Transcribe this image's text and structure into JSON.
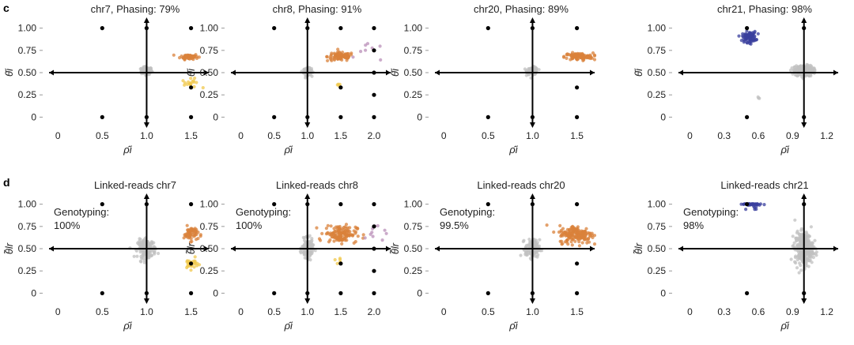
{
  "colors": {
    "null": "#c0c0c0",
    "gain": "#d9823b",
    "loss": "#f0c84c",
    "loh": "#3a3f9e",
    "other": "#b98fb8",
    "axis": "#000000",
    "text": "#222222"
  },
  "chart_data": [
    {
      "row": "c",
      "type": "scatter",
      "title": "chr7, Phasing: 79%",
      "xlabel": "ρ̂i",
      "ylabel": "θ̂i",
      "xlim": [
        -0.1,
        1.7
      ],
      "ylim": [
        -0.05,
        1.05
      ],
      "xticks": [
        0,
        0.5,
        1.0,
        1.5
      ],
      "xtick_labels": [
        "0",
        "0.5",
        "1.0",
        "1.5"
      ],
      "yticks": [
        0,
        0.25,
        0.5,
        0.75,
        1.0
      ],
      "ytick_labels": [
        "0",
        "0.25",
        "0.50",
        "0.75",
        "1.00"
      ],
      "h_axis_y": 0.5,
      "v_axis_x": 1.0,
      "reference_points": [
        [
          0.5,
          1.0
        ],
        [
          0.5,
          0
        ],
        [
          1.5,
          1.0
        ],
        [
          1.5,
          0.333
        ],
        [
          1.5,
          0
        ],
        [
          1.0,
          1.0
        ],
        [
          1.0,
          0
        ]
      ],
      "clusters": [
        {
          "class": "null",
          "cx": 1.0,
          "cy": 0.52,
          "sx": 0.03,
          "sy": 0.02,
          "n": 130
        },
        {
          "class": "gain",
          "cx": 1.48,
          "cy": 0.68,
          "sx": 0.05,
          "sy": 0.015,
          "n": 60
        },
        {
          "class": "loss",
          "cx": 1.5,
          "cy": 0.38,
          "sx": 0.05,
          "sy": 0.025,
          "n": 18
        }
      ]
    },
    {
      "row": "c",
      "type": "scatter",
      "title": "chr8, Phasing: 91%",
      "xlabel": "ρ̂i",
      "ylabel": "θ̂i",
      "xlim": [
        -0.15,
        2.25
      ],
      "ylim": [
        -0.05,
        1.05
      ],
      "xticks": [
        0,
        0.5,
        1.0,
        1.5,
        2.0
      ],
      "xtick_labels": [
        "0",
        "0.5",
        "1.0",
        "1.5",
        "2.0"
      ],
      "yticks": [
        0,
        0.25,
        0.5,
        0.75,
        1.0
      ],
      "ytick_labels": [
        "0",
        "0.25",
        "0.50",
        "0.75",
        "1.00"
      ],
      "h_axis_y": 0.5,
      "v_axis_x": 1.0,
      "reference_points": [
        [
          0.5,
          1.0
        ],
        [
          0.5,
          0
        ],
        [
          1.5,
          1.0
        ],
        [
          1.5,
          0.333
        ],
        [
          1.5,
          0
        ],
        [
          2.0,
          1.0
        ],
        [
          2.0,
          0.75
        ],
        [
          2.0,
          0.5
        ],
        [
          2.0,
          0.25
        ],
        [
          2.0,
          0
        ],
        [
          1.0,
          1.0
        ],
        [
          1.0,
          0
        ]
      ],
      "clusters": [
        {
          "class": "null",
          "cx": 1.0,
          "cy": 0.51,
          "sx": 0.03,
          "sy": 0.02,
          "n": 110
        },
        {
          "class": "gain",
          "cx": 1.5,
          "cy": 0.68,
          "sx": 0.1,
          "sy": 0.025,
          "n": 90
        },
        {
          "class": "loss",
          "cx": 1.45,
          "cy": 0.36,
          "sx": 0.03,
          "sy": 0.02,
          "n": 4
        },
        {
          "class": "other",
          "cx": 1.95,
          "cy": 0.72,
          "sx": 0.1,
          "sy": 0.05,
          "n": 8
        }
      ]
    },
    {
      "row": "c",
      "type": "scatter",
      "title": "chr20, Phasing: 89%",
      "xlabel": "ρ̂i",
      "ylabel": "θ̂i",
      "xlim": [
        -0.1,
        1.7
      ],
      "ylim": [
        -0.05,
        1.05
      ],
      "xticks": [
        0,
        0.5,
        1.0,
        1.5
      ],
      "xtick_labels": [
        "0",
        "0.5",
        "1.0",
        "1.5"
      ],
      "yticks": [
        0,
        0.25,
        0.5,
        0.75,
        1.0
      ],
      "ytick_labels": [
        "0",
        "0.25",
        "0.50",
        "0.75",
        "1.00"
      ],
      "h_axis_y": 0.5,
      "v_axis_x": 1.0,
      "reference_points": [
        [
          0.5,
          1.0
        ],
        [
          0.5,
          0
        ],
        [
          1.5,
          1.0
        ],
        [
          1.5,
          0.333
        ],
        [
          1.5,
          0
        ],
        [
          1.0,
          1.0
        ],
        [
          1.0,
          0
        ]
      ],
      "clusters": [
        {
          "class": "null",
          "cx": 1.0,
          "cy": 0.52,
          "sx": 0.03,
          "sy": 0.02,
          "n": 110
        },
        {
          "class": "gain",
          "cx": 1.52,
          "cy": 0.68,
          "sx": 0.08,
          "sy": 0.02,
          "n": 110
        }
      ]
    },
    {
      "row": "c",
      "type": "scatter",
      "title": "chr21, Phasing: 98%",
      "xlabel": "ρ̂i",
      "ylabel": "θ̂i",
      "xlim": [
        -0.1,
        1.3
      ],
      "ylim": [
        -0.05,
        1.05
      ],
      "xticks": [
        0,
        0.3,
        0.6,
        0.9,
        1.2
      ],
      "xtick_labels": [
        "0",
        "0.3",
        "0.6",
        "0.9",
        "1.2"
      ],
      "yticks": [
        0,
        0.25,
        0.5,
        0.75,
        1.0
      ],
      "ytick_labels": [
        "0",
        "0.25",
        "0.50",
        "0.75",
        "1.00"
      ],
      "h_axis_y": 0.5,
      "v_axis_x": 1.0,
      "reference_points": [
        [
          0.5,
          1.0
        ],
        [
          0.5,
          0
        ],
        [
          1.0,
          1.0
        ],
        [
          1.0,
          0
        ]
      ],
      "clusters": [
        {
          "class": "null",
          "cx": 1.0,
          "cy": 0.52,
          "sx": 0.04,
          "sy": 0.03,
          "n": 260
        },
        {
          "class": "loh",
          "cx": 0.52,
          "cy": 0.9,
          "sx": 0.03,
          "sy": 0.03,
          "n": 90
        },
        {
          "class": "null",
          "cx": 0.6,
          "cy": 0.22,
          "sx": 0.01,
          "sy": 0.01,
          "n": 3
        }
      ]
    },
    {
      "row": "d",
      "type": "scatter",
      "title": "Linked-reads chr7",
      "annotation": [
        "Genotyping:",
        "100%"
      ],
      "xlabel": "ρ̂i",
      "ylabel": "θ̃lr",
      "xlim": [
        -0.1,
        1.7
      ],
      "ylim": [
        -0.05,
        1.05
      ],
      "xticks": [
        0,
        0.5,
        1.0,
        1.5
      ],
      "xtick_labels": [
        "0",
        "0.5",
        "1.0",
        "1.5"
      ],
      "yticks": [
        0,
        0.25,
        0.5,
        0.75,
        1.0
      ],
      "ytick_labels": [
        "0",
        "0.25",
        "0.50",
        "0.75",
        "1.00"
      ],
      "h_axis_y": 0.5,
      "v_axis_x": 1.0,
      "reference_points": [
        [
          0.5,
          1.0
        ],
        [
          0.5,
          0
        ],
        [
          1.5,
          1.0
        ],
        [
          1.5,
          0.333
        ],
        [
          1.5,
          0
        ],
        [
          1.0,
          1.0
        ],
        [
          1.0,
          0
        ]
      ],
      "clusters": [
        {
          "class": "null",
          "cx": 1.0,
          "cy": 0.5,
          "sx": 0.05,
          "sy": 0.05,
          "n": 170
        },
        {
          "class": "gain",
          "cx": 1.5,
          "cy": 0.67,
          "sx": 0.04,
          "sy": 0.04,
          "n": 55
        },
        {
          "class": "loss",
          "cx": 1.5,
          "cy": 0.33,
          "sx": 0.04,
          "sy": 0.03,
          "n": 28
        }
      ]
    },
    {
      "row": "d",
      "type": "scatter",
      "title": "Linked-reads chr8",
      "annotation": [
        "Genotyping:",
        "100%"
      ],
      "xlabel": "ρ̂i",
      "ylabel": "θ̃lr",
      "xlim": [
        -0.15,
        2.25
      ],
      "ylim": [
        -0.05,
        1.05
      ],
      "xticks": [
        0,
        0.5,
        1.0,
        1.5,
        2.0
      ],
      "xtick_labels": [
        "0",
        "0.5",
        "1.0",
        "1.5",
        "2.0"
      ],
      "yticks": [
        0,
        0.25,
        0.5,
        0.75,
        1.0
      ],
      "ytick_labels": [
        "0",
        "0.25",
        "0.50",
        "0.75",
        "1.00"
      ],
      "h_axis_y": 0.5,
      "v_axis_x": 1.0,
      "reference_points": [
        [
          0.5,
          1.0
        ],
        [
          0.5,
          0
        ],
        [
          1.5,
          1.0
        ],
        [
          1.5,
          0.333
        ],
        [
          1.5,
          0
        ],
        [
          2.0,
          1.0
        ],
        [
          2.0,
          0.75
        ],
        [
          2.0,
          0.5
        ],
        [
          2.0,
          0.25
        ],
        [
          2.0,
          0
        ],
        [
          1.0,
          1.0
        ],
        [
          1.0,
          0
        ]
      ],
      "clusters": [
        {
          "class": "null",
          "cx": 1.0,
          "cy": 0.5,
          "sx": 0.04,
          "sy": 0.05,
          "n": 150
        },
        {
          "class": "gain",
          "cx": 1.5,
          "cy": 0.67,
          "sx": 0.12,
          "sy": 0.05,
          "n": 130
        },
        {
          "class": "loss",
          "cx": 1.45,
          "cy": 0.35,
          "sx": 0.03,
          "sy": 0.02,
          "n": 5
        },
        {
          "class": "other",
          "cx": 2.0,
          "cy": 0.65,
          "sx": 0.1,
          "sy": 0.06,
          "n": 10
        }
      ]
    },
    {
      "row": "d",
      "type": "scatter",
      "title": "Linked-reads chr20",
      "annotation": [
        "Genotyping:",
        "99.5%"
      ],
      "xlabel": "ρ̂i",
      "ylabel": "θ̃lr",
      "xlim": [
        -0.1,
        1.7
      ],
      "ylim": [
        -0.05,
        1.05
      ],
      "xticks": [
        0,
        0.5,
        1.0,
        1.5
      ],
      "xtick_labels": [
        "0",
        "0.5",
        "1.0",
        "1.5"
      ],
      "yticks": [
        0,
        0.25,
        0.5,
        0.75,
        1.0
      ],
      "ytick_labels": [
        "0",
        "0.25",
        "0.50",
        "0.75",
        "1.00"
      ],
      "h_axis_y": 0.5,
      "v_axis_x": 1.0,
      "reference_points": [
        [
          0.5,
          1.0
        ],
        [
          0.5,
          0
        ],
        [
          1.5,
          1.0
        ],
        [
          1.5,
          0.333
        ],
        [
          1.5,
          0
        ],
        [
          1.0,
          1.0
        ],
        [
          1.0,
          0
        ]
      ],
      "clusters": [
        {
          "class": "null",
          "cx": 1.0,
          "cy": 0.5,
          "sx": 0.04,
          "sy": 0.05,
          "n": 140
        },
        {
          "class": "gain",
          "cx": 1.5,
          "cy": 0.66,
          "sx": 0.1,
          "sy": 0.05,
          "n": 170
        }
      ]
    },
    {
      "row": "d",
      "type": "scatter",
      "title": "Linked-reads chr21",
      "annotation": [
        "Genotyping:",
        "98%"
      ],
      "xlabel": "ρ̂i",
      "ylabel": "θ̃lr",
      "xlim": [
        -0.1,
        1.3
      ],
      "ylim": [
        -0.05,
        1.05
      ],
      "xticks": [
        0,
        0.3,
        0.6,
        0.9,
        1.2
      ],
      "xtick_labels": [
        "0",
        "0.3",
        "0.6",
        "0.9",
        "1.2"
      ],
      "yticks": [
        0,
        0.25,
        0.5,
        0.75,
        1.0
      ],
      "ytick_labels": [
        "0",
        "0.25",
        "0.50",
        "0.75",
        "1.00"
      ],
      "h_axis_y": 0.5,
      "v_axis_x": 1.0,
      "reference_points": [
        [
          0.5,
          1.0
        ],
        [
          0.5,
          0
        ],
        [
          1.0,
          1.0
        ],
        [
          1.0,
          0
        ]
      ],
      "clusters": [
        {
          "class": "null",
          "cx": 1.0,
          "cy": 0.5,
          "sx": 0.04,
          "sy": 0.09,
          "n": 320
        },
        {
          "class": "loh",
          "cx": 0.52,
          "cy": 1.0,
          "sx": 0.04,
          "sy": 0.004,
          "n": 40
        },
        {
          "class": "loh",
          "cx": 0.55,
          "cy": 0.96,
          "sx": 0.03,
          "sy": 0.02,
          "n": 6
        }
      ]
    }
  ],
  "panel_labels": {
    "row_c": "c",
    "row_d": "d"
  }
}
